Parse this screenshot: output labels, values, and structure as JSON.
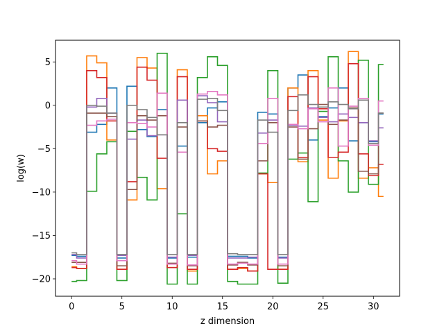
{
  "chart_data": {
    "type": "line",
    "step": "mid",
    "xlabel": "z dimension",
    "ylabel": "log(w)",
    "xlim": [
      -1.6,
      32.6
    ],
    "ylim": [
      -22,
      7.5
    ],
    "xticks": [
      0,
      5,
      10,
      15,
      20,
      25,
      30
    ],
    "yticks": [
      5,
      0,
      -5,
      -10,
      -15,
      -20
    ],
    "ytick_labels": [
      "5",
      "0",
      "−5",
      "−10",
      "−15",
      "−20"
    ],
    "grid": false,
    "x": [
      0,
      1,
      2,
      3,
      4,
      5,
      6,
      7,
      8,
      9,
      10,
      11,
      12,
      13,
      14,
      15,
      16,
      17,
      18,
      19,
      20,
      21,
      22,
      23,
      24,
      25,
      26,
      27,
      28,
      29,
      30,
      31
    ],
    "series": [
      {
        "color": "#1f77b4",
        "values": [
          -17.3,
          -17.4,
          -3.1,
          -2.2,
          2.0,
          -17.6,
          2.2,
          -2.8,
          -3.6,
          -0.5,
          -17.6,
          -4.7,
          -17.5,
          -2.0,
          -0.3,
          0.4,
          -17.4,
          -17.4,
          -17.6,
          -0.8,
          -1.0,
          -17.5,
          2.0,
          3.5,
          -4.0,
          -1.3,
          -0.3,
          2.0,
          -4.1,
          -2.0,
          -4.2,
          -1.0
        ]
      },
      {
        "color": "#ff7f0e",
        "values": [
          -18.6,
          -18.8,
          5.7,
          4.9,
          -4.0,
          -18.9,
          -10.9,
          5.5,
          4.3,
          -9.6,
          -18.7,
          4.1,
          -19.1,
          -1.2,
          -7.9,
          -6.4,
          -18.9,
          -18.8,
          -19.1,
          -7.9,
          -8.9,
          -18.9,
          2.0,
          -6.5,
          4.0,
          -1.7,
          -8.4,
          -1.8,
          6.2,
          -8.4,
          -7.2,
          -10.5
        ]
      },
      {
        "color": "#2ca02c",
        "values": [
          -20.3,
          -20.2,
          -9.9,
          -5.6,
          -4.2,
          -20.2,
          -3.0,
          -8.3,
          -10.9,
          6.0,
          -20.6,
          -12.5,
          -20.6,
          3.2,
          5.6,
          4.6,
          -20.3,
          -20.6,
          -20.6,
          -7.8,
          4.0,
          -20.5,
          -6.2,
          -5.5,
          -11.1,
          -0.7,
          5.6,
          -6.4,
          -10.0,
          5.2,
          -9.1,
          4.7
        ]
      },
      {
        "color": "#d62728",
        "values": [
          -18.7,
          -18.8,
          4.0,
          3.2,
          -1.8,
          -18.9,
          -8.8,
          4.4,
          2.9,
          -6.1,
          -18.7,
          3.3,
          -18.9,
          -1.8,
          -5.0,
          -5.3,
          -18.9,
          -18.7,
          -19.1,
          -7.9,
          -18.9,
          -18.9,
          1.0,
          -6.0,
          3.3,
          -0.4,
          -6.0,
          -5.4,
          4.8,
          -5.6,
          -8.1,
          -6.8
        ]
      },
      {
        "color": "#9467bd",
        "values": [
          -17.2,
          -17.6,
          -0.2,
          0.8,
          -0.9,
          -17.3,
          -3.9,
          -1.7,
          -3.5,
          -3.4,
          -17.5,
          0.6,
          -17.3,
          1.1,
          0.3,
          -1.9,
          -17.6,
          -17.6,
          -17.5,
          -3.2,
          -1.7,
          -17.6,
          -2.3,
          -2.4,
          -0.3,
          -1.4,
          -1.9,
          -1.0,
          -1.4,
          -2.0,
          -4.1,
          -2.6
        ]
      },
      {
        "color": "#8c564b",
        "values": [
          -18.1,
          -18.1,
          -0.9,
          -0.9,
          -1.3,
          -18.5,
          -9.7,
          -1.2,
          -1.7,
          -1.2,
          -18.2,
          -2.5,
          -18.5,
          -1.8,
          -2.5,
          -2.3,
          -18.4,
          -18.1,
          -18.4,
          -6.4,
          -2.0,
          -18.5,
          -2.5,
          -6.2,
          -2.7,
          0.1,
          -2.2,
          -1.7,
          -0.3,
          -7.6,
          -7.9,
          -0.9
        ]
      },
      {
        "color": "#e377c2",
        "values": [
          -17.9,
          -18.3,
          -2.3,
          -1.8,
          -1.6,
          -17.9,
          -2.0,
          -2.1,
          -2.5,
          1.4,
          -18.3,
          -5.4,
          -18.4,
          1.3,
          1.6,
          1.2,
          -18.3,
          -18.2,
          -18.3,
          -4.4,
          0.8,
          -18.3,
          -2.2,
          -2.7,
          -0.4,
          -1.9,
          2.0,
          -4.7,
          -0.1,
          0.8,
          -4.6,
          0.5
        ]
      },
      {
        "color": "#7f7f7f",
        "values": [
          -17.0,
          -17.2,
          0.0,
          -0.1,
          -0.9,
          -17.2,
          0.0,
          -0.5,
          -1.4,
          -3.4,
          -17.2,
          -2.0,
          -17.2,
          0.7,
          0.8,
          -0.6,
          -17.1,
          -17.2,
          -17.2,
          -1.7,
          -3.1,
          -17.2,
          -0.6,
          1.2,
          0.1,
          -0.2,
          0.4,
          0.1,
          -0.4,
          0.6,
          -4.4,
          -0.9
        ]
      }
    ]
  }
}
